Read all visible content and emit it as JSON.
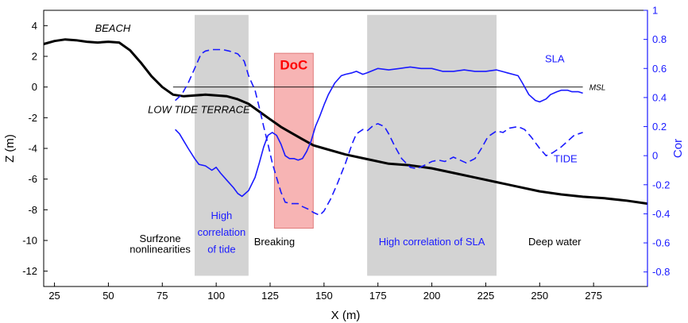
{
  "chart_data": {
    "type": "line",
    "xlabel": "X (m)",
    "ylabel_left": "Z (m)",
    "ylabel_right": "Cor",
    "xlim": [
      20,
      300
    ],
    "ylim_left": [
      -13,
      5
    ],
    "ylim_right": [
      -0.9,
      1.0
    ],
    "xticks": [
      25,
      50,
      75,
      100,
      125,
      150,
      175,
      200,
      225,
      250,
      275
    ],
    "yticks_left": [
      -12,
      -10,
      -8,
      -6,
      -4,
      -2,
      0,
      2,
      4
    ],
    "yticks_right": [
      -0.8,
      -0.6,
      -0.4,
      -0.2,
      0,
      0.2,
      0.4,
      0.6,
      0.8,
      1
    ],
    "grid": false,
    "colors": {
      "beach": "#000000",
      "sla": "#1a1aff",
      "tide": "#1a1aff",
      "axis_right": "#1a1aff",
      "shade": "#d3d3d3",
      "doc_fill": "#f7b4b4",
      "doc_text": "#ff0000"
    },
    "shaded_regions": [
      {
        "x0": 90,
        "x1": 115
      },
      {
        "x0": 170,
        "x1": 230
      }
    ],
    "doc_region": {
      "x0": 127,
      "x1": 145,
      "y0": -9.2,
      "y1": 2.2,
      "label": "DoC"
    },
    "msl": {
      "z": 0,
      "x0": 80,
      "x1": 270,
      "label": "MSL"
    },
    "series": [
      {
        "name": "BEACH",
        "axis": "left",
        "style": "solid-thick",
        "x": [
          20,
          25,
          30,
          35,
          40,
          45,
          50,
          55,
          60,
          65,
          70,
          75,
          80,
          85,
          90,
          95,
          100,
          105,
          110,
          115,
          120,
          125,
          130,
          135,
          140,
          145,
          150,
          160,
          170,
          180,
          190,
          200,
          210,
          220,
          230,
          240,
          250,
          260,
          270,
          280,
          290,
          300
        ],
        "y": [
          2.8,
          3.0,
          3.1,
          3.05,
          2.95,
          2.9,
          2.95,
          2.9,
          2.4,
          1.6,
          0.7,
          0.0,
          -0.5,
          -0.6,
          -0.55,
          -0.5,
          -0.55,
          -0.6,
          -0.8,
          -1.1,
          -1.6,
          -2.1,
          -2.6,
          -3.0,
          -3.4,
          -3.8,
          -4.0,
          -4.4,
          -4.7,
          -5.0,
          -5.1,
          -5.3,
          -5.6,
          -5.9,
          -6.2,
          -6.5,
          -6.8,
          -7.0,
          -7.15,
          -7.25,
          -7.4,
          -7.6
        ]
      },
      {
        "name": "SLA",
        "axis": "right",
        "style": "solid",
        "x": [
          81,
          83,
          85,
          87,
          90,
          92,
          95,
          98,
          100,
          102,
          105,
          108,
          110,
          112,
          115,
          118,
          120,
          122,
          124,
          126,
          128,
          130,
          132,
          134,
          136,
          138,
          140,
          142,
          144,
          146,
          148,
          150,
          152,
          155,
          158,
          160,
          163,
          165,
          168,
          170,
          175,
          180,
          185,
          190,
          195,
          200,
          205,
          210,
          215,
          220,
          225,
          230,
          235,
          240,
          242,
          245,
          248,
          250,
          253,
          255,
          258,
          260,
          263,
          265,
          268,
          270
        ],
        "y": [
          0.18,
          0.15,
          0.1,
          0.05,
          -0.02,
          -0.06,
          -0.07,
          -0.1,
          -0.08,
          -0.12,
          -0.17,
          -0.22,
          -0.26,
          -0.28,
          -0.24,
          -0.15,
          -0.05,
          0.06,
          0.14,
          0.16,
          0.14,
          0.08,
          0.0,
          -0.02,
          -0.02,
          -0.03,
          -0.02,
          0.03,
          0.1,
          0.2,
          0.27,
          0.35,
          0.42,
          0.5,
          0.55,
          0.56,
          0.57,
          0.58,
          0.56,
          0.57,
          0.6,
          0.59,
          0.6,
          0.61,
          0.6,
          0.6,
          0.58,
          0.58,
          0.59,
          0.58,
          0.58,
          0.59,
          0.57,
          0.55,
          0.5,
          0.42,
          0.38,
          0.37,
          0.39,
          0.42,
          0.44,
          0.45,
          0.45,
          0.44,
          0.44,
          0.43
        ]
      },
      {
        "name": "TIDE",
        "axis": "right",
        "style": "dashed",
        "x": [
          81,
          84,
          87,
          90,
          93,
          95,
          98,
          100,
          103,
          106,
          110,
          113,
          115,
          118,
          120,
          122,
          124,
          126,
          128,
          130,
          132,
          135,
          138,
          140,
          143,
          145,
          148,
          150,
          153,
          156,
          160,
          163,
          165,
          168,
          170,
          173,
          175,
          178,
          180,
          183,
          186,
          190,
          193,
          196,
          200,
          203,
          206,
          210,
          213,
          216,
          220,
          223,
          226,
          230,
          233,
          236,
          240,
          243,
          246,
          250,
          253,
          256,
          260,
          263,
          266,
          270
        ],
        "y": [
          0.38,
          0.42,
          0.5,
          0.6,
          0.7,
          0.72,
          0.73,
          0.73,
          0.73,
          0.72,
          0.7,
          0.65,
          0.55,
          0.45,
          0.33,
          0.2,
          0.08,
          -0.05,
          -0.15,
          -0.25,
          -0.32,
          -0.33,
          -0.33,
          -0.35,
          -0.37,
          -0.39,
          -0.41,
          -0.38,
          -0.3,
          -0.2,
          -0.05,
          0.08,
          0.15,
          0.18,
          0.17,
          0.21,
          0.22,
          0.2,
          0.15,
          0.06,
          -0.02,
          -0.08,
          -0.09,
          -0.07,
          -0.04,
          -0.03,
          -0.04,
          -0.01,
          -0.03,
          -0.05,
          -0.02,
          0.05,
          0.13,
          0.17,
          0.16,
          0.19,
          0.2,
          0.18,
          0.13,
          0.05,
          0.0,
          0.02,
          0.06,
          0.1,
          0.14,
          0.16
        ]
      }
    ],
    "annotations": [
      {
        "id": "beach",
        "text": "BEACH",
        "x": 52,
        "z": 3.6,
        "color": "#000000",
        "italic": true,
        "anchor": "middle"
      },
      {
        "id": "low-tide-terrace",
        "text": "LOW TIDE TERRACE",
        "x": 92,
        "z": -1.7,
        "color": "#000000",
        "italic": true,
        "anchor": "middle"
      },
      {
        "id": "msl",
        "text": "MSL",
        "x": 273,
        "z": -0.2,
        "color": "#000000",
        "italic": true,
        "anchor": "start",
        "size": 10
      },
      {
        "id": "sla-label",
        "text": "SLA",
        "x": 257,
        "z": 1.6,
        "color": "#1a1aff",
        "anchor": "middle"
      },
      {
        "id": "tide-label",
        "text": "TIDE",
        "x": 262,
        "z": -4.9,
        "color": "#1a1aff",
        "anchor": "middle"
      },
      {
        "id": "doc-label",
        "text": "DoC",
        "x": 136,
        "z": 1.15,
        "color": "#ff0000",
        "bold": true,
        "anchor": "middle",
        "size": 17
      },
      {
        "id": "surfzone",
        "text": "Surfzone",
        "x": 74,
        "z": -10.1,
        "color": "#000000",
        "anchor": "middle"
      },
      {
        "id": "nonlinearities",
        "text": "nonlinearities",
        "x": 74,
        "z": -10.8,
        "color": "#000000",
        "anchor": "middle"
      },
      {
        "id": "high1",
        "text": "High",
        "x": 102.5,
        "z": -8.6,
        "color": "#1a1aff",
        "anchor": "middle"
      },
      {
        "id": "correlation1",
        "text": "correlation",
        "x": 102.5,
        "z": -9.7,
        "color": "#1a1aff",
        "anchor": "middle"
      },
      {
        "id": "oftide",
        "text": "of tide",
        "x": 102.5,
        "z": -10.8,
        "color": "#1a1aff",
        "anchor": "middle"
      },
      {
        "id": "breaking",
        "text": "Breaking",
        "x": 127,
        "z": -10.3,
        "color": "#000000",
        "anchor": "middle"
      },
      {
        "id": "high-sla",
        "text": "High correlation of SLA",
        "x": 200,
        "z": -10.3,
        "color": "#1a1aff",
        "anchor": "middle"
      },
      {
        "id": "deep-water",
        "text": "Deep water",
        "x": 257,
        "z": -10.3,
        "color": "#000000",
        "anchor": "middle"
      }
    ]
  }
}
